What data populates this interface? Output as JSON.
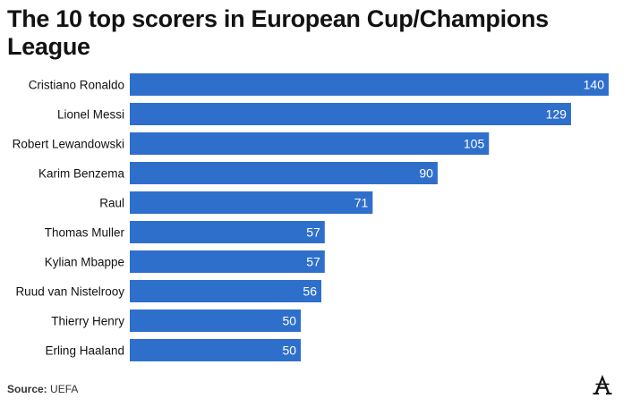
{
  "chart_data": {
    "type": "bar",
    "orientation": "horizontal",
    "title": "The 10 top scorers in European Cup/Champions League",
    "categories": [
      "Cristiano Ronaldo",
      "Lionel Messi",
      "Robert Lewandowski",
      "Karim Benzema",
      "Raul",
      "Thomas Muller",
      "Kylian Mbappe",
      "Ruud van Nistelrooy",
      "Thierry Henry",
      "Erling Haaland"
    ],
    "values": [
      140,
      129,
      105,
      90,
      71,
      57,
      57,
      56,
      50,
      50
    ],
    "xlim": [
      0,
      140
    ],
    "grid": false,
    "legend": "none",
    "bar_color": "#2f6fcc",
    "value_label_color": "#ffffff"
  },
  "source": {
    "label": "Source:",
    "text": "UEFA"
  },
  "logo": {
    "icon": "the-athletic-logo",
    "letter": "A"
  }
}
